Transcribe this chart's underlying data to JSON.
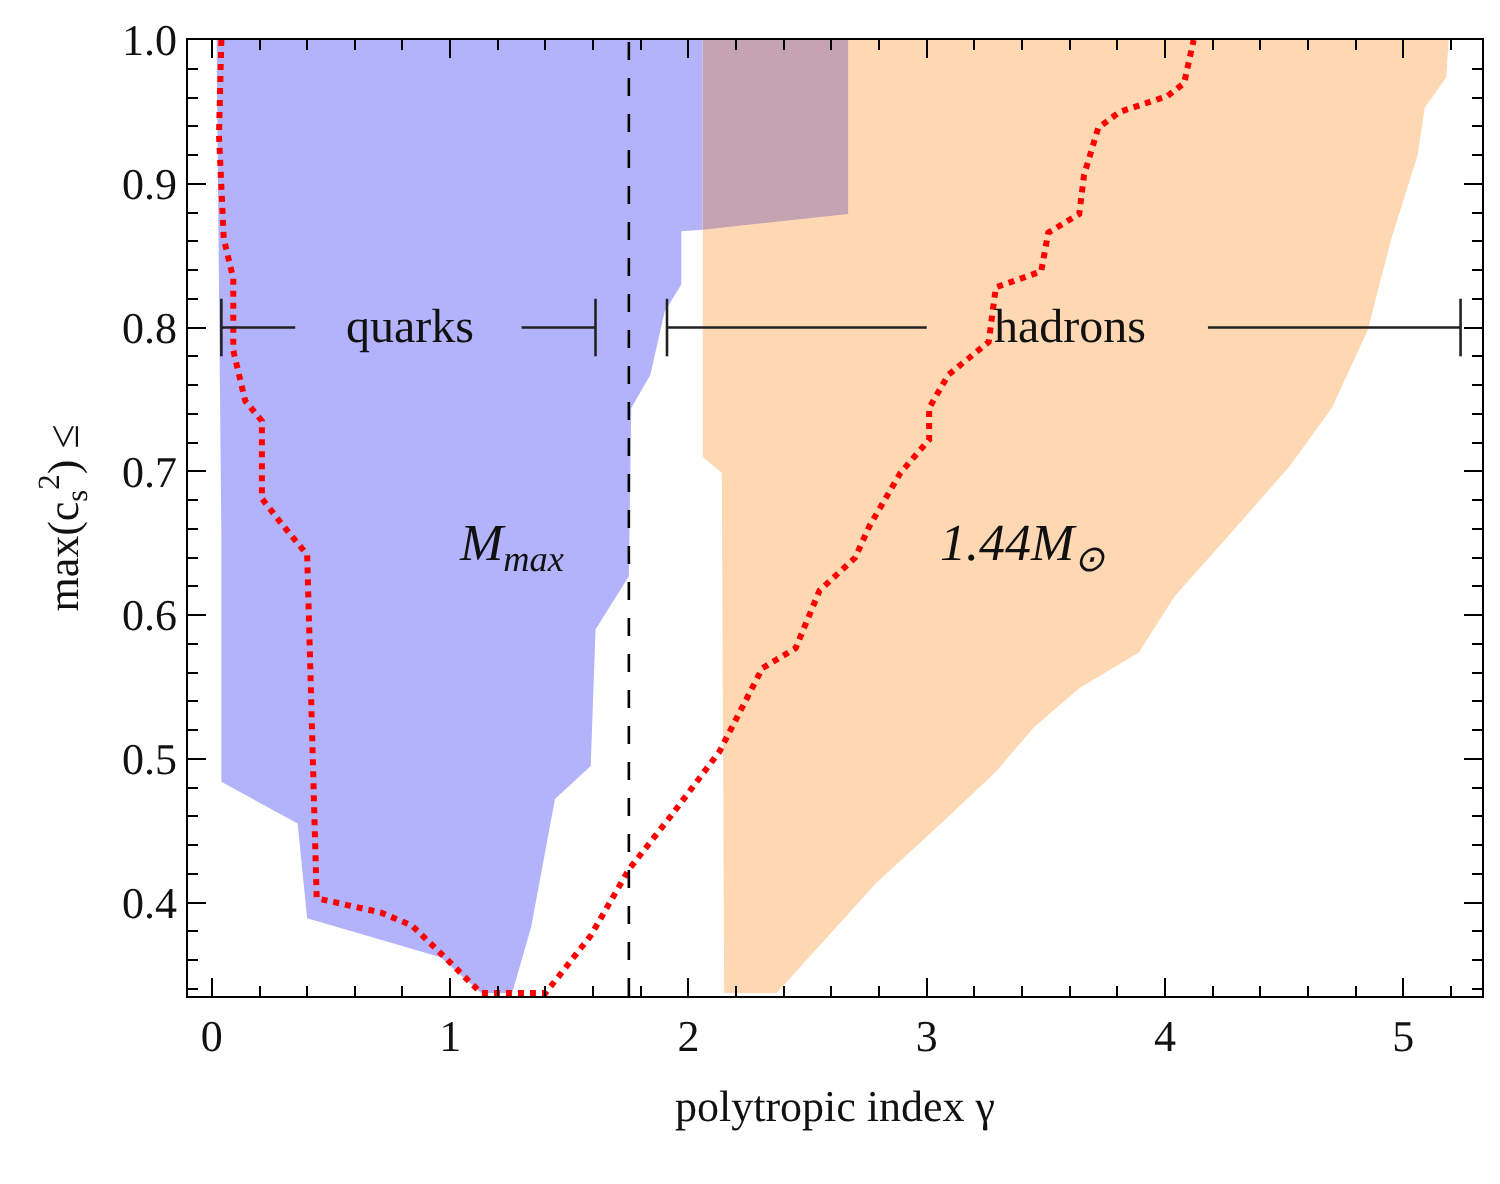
{
  "chart_data": {
    "type": "area",
    "xlabel": "polytropic index γ",
    "ylabel": "max(c$_{s}$$^{2}$) ≤",
    "xlim": [
      -0.1,
      5.33
    ],
    "ylim": [
      0.335,
      1.0
    ],
    "xticks": [
      0,
      1,
      2,
      3,
      4,
      5
    ],
    "yticks": [
      {
        "value": 0.4,
        "label": "0.4"
      },
      {
        "value": 0.5,
        "label": "0.5"
      },
      {
        "value": 0.6,
        "label": "0.6"
      },
      {
        "value": 0.7,
        "label": "0.7"
      },
      {
        "value": 0.8,
        "label": "0.8"
      },
      {
        "value": 0.9,
        "label": "0.9"
      },
      {
        "value": 1.0,
        "label": "1.0"
      }
    ],
    "legend": false,
    "series": [
      {
        "color": "#b3b3fb",
        "x": [
          0.02,
          0.04,
          0.04,
          0.36,
          0.4,
          0.96,
          1.13,
          1.26,
          1.34,
          1.44,
          1.59,
          1.61,
          1.75,
          1.76,
          1.84,
          1.9,
          1.97,
          1.97,
          2.06,
          2.06
        ],
        "values": [
          1.0,
          0.654,
          0.484,
          0.455,
          0.389,
          0.362,
          0.337,
          0.337,
          0.383,
          0.472,
          0.495,
          0.59,
          0.627,
          0.744,
          0.767,
          0.811,
          0.83,
          0.867,
          0.868,
          1.0
        ]
      },
      {
        "color": "#fdd8b2",
        "x": [
          2.06,
          2.06,
          2.14,
          2.15,
          2.37,
          2.79,
          3.06,
          3.29,
          3.45,
          3.64,
          3.89,
          4.04,
          4.26,
          4.52,
          4.7,
          4.85,
          4.95,
          5.06,
          5.09,
          5.18,
          5.19
        ],
        "values": [
          1.0,
          0.71,
          0.699,
          0.337,
          0.337,
          0.414,
          0.455,
          0.491,
          0.522,
          0.549,
          0.574,
          0.613,
          0.654,
          0.703,
          0.744,
          0.798,
          0.862,
          0.92,
          0.953,
          0.974,
          1.0
        ]
      },
      {
        "color": "#c6a3b3",
        "x": [
          2.06,
          2.06,
          2.67,
          2.67
        ],
        "values": [
          1.0,
          0.868,
          0.879,
          1.0
        ]
      },
      {
        "type": "line",
        "color": "#ff0000",
        "line_style": "dotted",
        "x": [
          0.04,
          0.03,
          0.05,
          0.09,
          0.09,
          0.14,
          0.21,
          0.21,
          0.3,
          0.4,
          0.44,
          0.71,
          0.84,
          0.99,
          1.13,
          1.4,
          1.59,
          1.75,
          1.93,
          2.13,
          2.31,
          2.45,
          2.55,
          2.7,
          2.76,
          2.89,
          3.01,
          3.01,
          3.09,
          3.26,
          3.29,
          3.48,
          3.51,
          3.64,
          3.66,
          3.72,
          3.81,
          4.01,
          4.08,
          4.12
        ],
        "values": [
          1.0,
          0.934,
          0.862,
          0.834,
          0.784,
          0.749,
          0.735,
          0.681,
          0.662,
          0.642,
          0.403,
          0.393,
          0.384,
          0.36,
          0.337,
          0.337,
          0.377,
          0.423,
          0.461,
          0.505,
          0.563,
          0.577,
          0.617,
          0.64,
          0.662,
          0.699,
          0.722,
          0.744,
          0.767,
          0.79,
          0.828,
          0.839,
          0.866,
          0.879,
          0.906,
          0.939,
          0.95,
          0.961,
          0.97,
          1.0
        ]
      },
      {
        "type": "line",
        "name": "quarks",
        "color": "#222222",
        "x": [
          0.04,
          0.35,
          0.83,
          1.3,
          1.61
        ],
        "values": [
          0.8,
          0.8,
          null,
          0.8,
          0.8
        ],
        "errors": [
          0.02,
          null,
          null,
          null,
          0.02
        ]
      },
      {
        "type": "line",
        "name": "hadrons",
        "color": "#222222",
        "x": [
          1.91,
          3.0,
          3.6,
          4.18,
          5.24
        ],
        "values": [
          0.8,
          0.8,
          null,
          0.8,
          0.8
        ],
        "errors": [
          0.02,
          null,
          null,
          null,
          0.02
        ]
      }
    ],
    "ref_lines": [
      {
        "axis": "x",
        "value": 1.75,
        "color": "#000000",
        "line_style": "dashed"
      }
    ],
    "annotations": [
      "M$_{max}$",
      "1.44M$_{⊙}$"
    ]
  }
}
